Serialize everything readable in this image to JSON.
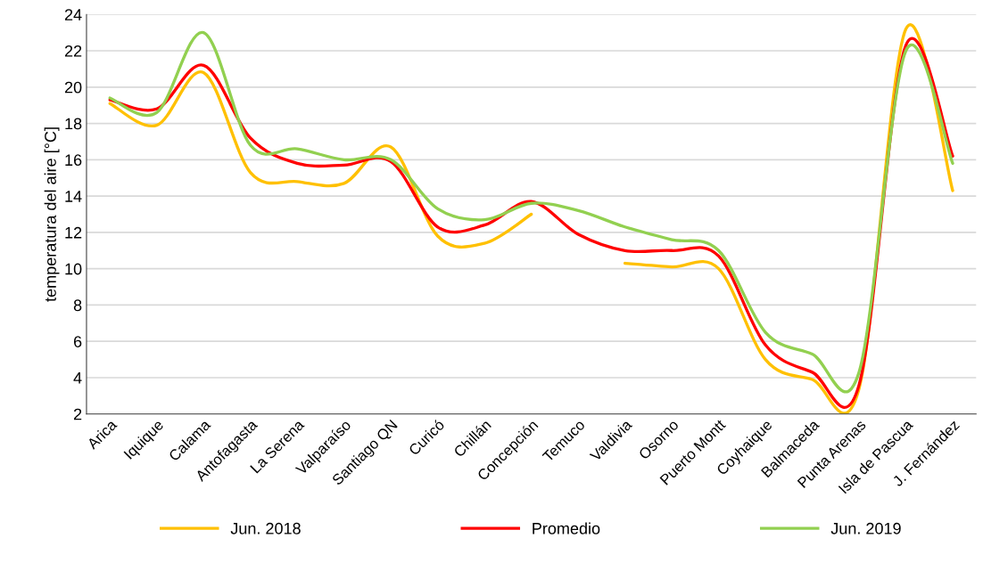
{
  "chart_data": {
    "type": "line",
    "ylabel": "temperatura del aire [°C]",
    "categories": [
      "Arica",
      "Iquique",
      "Calama",
      "Antofagasta",
      "La Serena",
      "Valparaíso",
      "Santiago QN",
      "Curicó",
      "Chillán",
      "Concepción",
      "Temuco",
      "Valdivia",
      "Osorno",
      "Puerto Montt",
      "Coyhaique",
      "Balmaceda",
      "Punta Arenas",
      "Isla de Pascua",
      "J. Fernández"
    ],
    "series": [
      {
        "name": "Jun. 2018",
        "color": "#ffc000",
        "values": [
          19.1,
          17.9,
          20.8,
          15.3,
          14.8,
          14.7,
          16.7,
          11.8,
          11.4,
          13.0,
          null,
          10.3,
          10.1,
          10.0,
          5.0,
          3.9,
          3.4,
          23.2,
          14.3
        ]
      },
      {
        "name": "Promedio",
        "color": "#ff0000",
        "values": [
          19.3,
          18.8,
          21.2,
          17.2,
          15.8,
          15.7,
          15.9,
          12.3,
          12.4,
          13.7,
          11.9,
          11.0,
          11.0,
          10.7,
          5.8,
          4.3,
          3.6,
          22.3,
          16.2
        ]
      },
      {
        "name": "Jun. 2019",
        "color": "#92d050",
        "values": [
          19.4,
          18.6,
          23.0,
          16.8,
          16.6,
          16.0,
          16.0,
          13.3,
          12.7,
          13.6,
          13.2,
          12.3,
          11.6,
          11.0,
          6.5,
          5.3,
          4.3,
          22.0,
          15.8
        ]
      }
    ],
    "ylim": [
      2,
      24
    ],
    "yticks": [
      2,
      4,
      6,
      8,
      10,
      12,
      14,
      16,
      18,
      20,
      22,
      24
    ],
    "grid": "y",
    "legend": "bottom",
    "marker": "none",
    "line_style": "solid"
  }
}
